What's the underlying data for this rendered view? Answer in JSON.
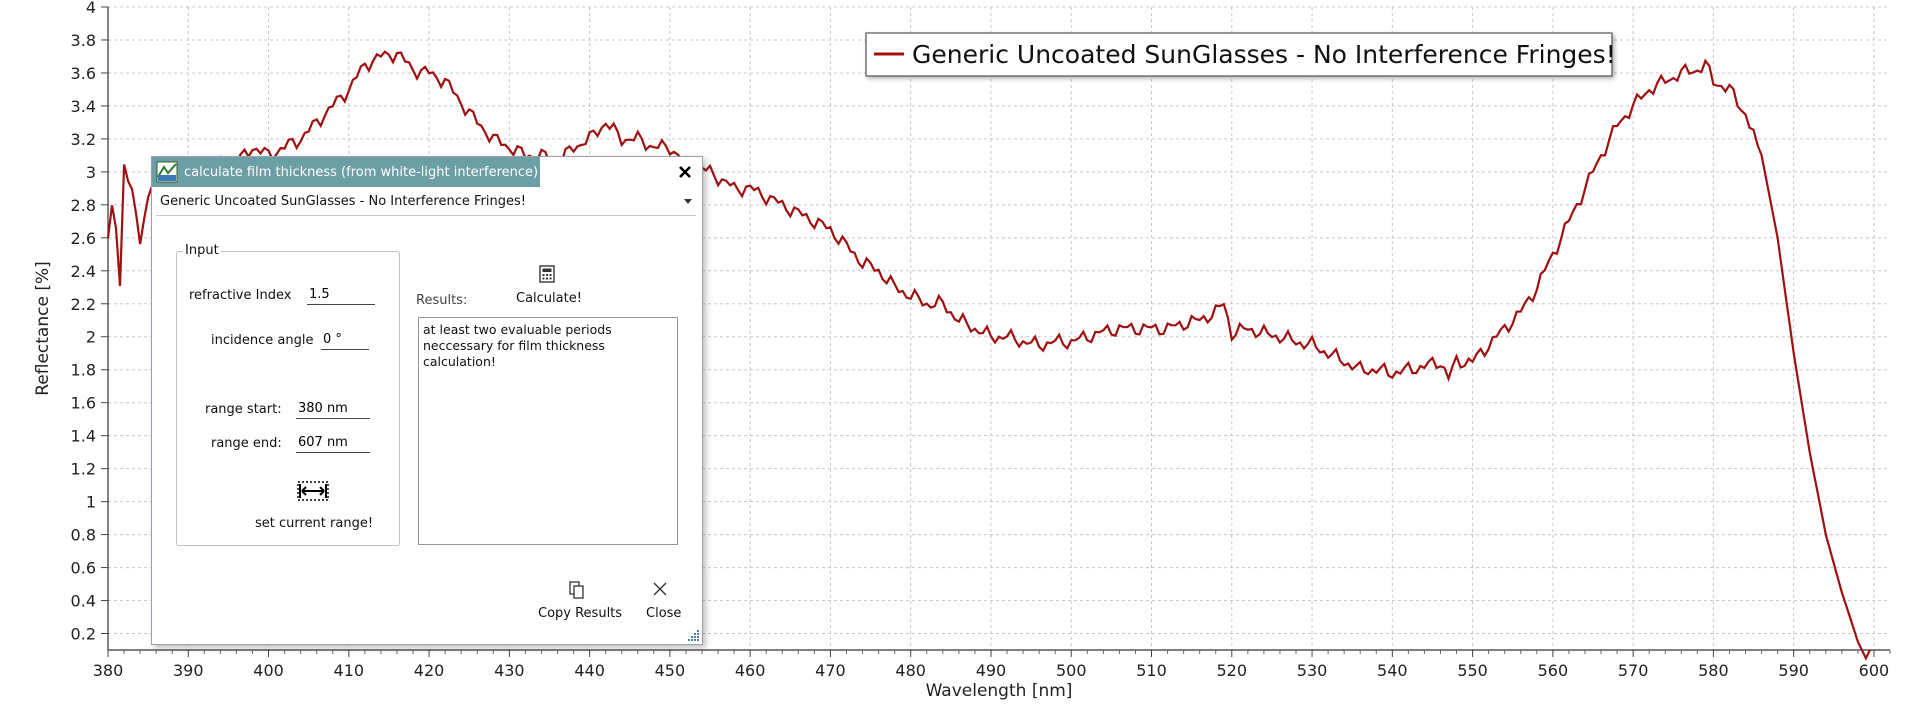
{
  "chart_data": {
    "type": "line",
    "xlabel": "Wavelength [nm]",
    "ylabel": "Reflectance [%]",
    "xlim": [
      380,
      602
    ],
    "ylim": [
      0.1,
      4
    ],
    "x_ticks": [
      380,
      390,
      400,
      410,
      420,
      430,
      440,
      450,
      460,
      470,
      480,
      490,
      500,
      510,
      520,
      530,
      540,
      550,
      560,
      570,
      580,
      590,
      600
    ],
    "y_ticks": [
      0.2,
      0.4,
      0.6,
      0.8,
      1,
      1.2,
      1.4,
      1.6,
      1.8,
      2,
      2.2,
      2.4,
      2.6,
      2.8,
      3,
      3.2,
      3.4,
      3.6,
      3.8,
      4
    ],
    "grid": true,
    "legend": "top-right",
    "series": [
      {
        "name": "Generic Uncoated SunGlasses - No Interference Fringes!",
        "color": "#a01010",
        "x": [
          380,
          380.5,
          381,
          381.5,
          382,
          383,
          384,
          385,
          386,
          387,
          388,
          389,
          390,
          392,
          394,
          396,
          398,
          400,
          402,
          404,
          406,
          408,
          410,
          412,
          414,
          416,
          418,
          420,
          422,
          424,
          426,
          428,
          430,
          432,
          434,
          436,
          438,
          440,
          442,
          444,
          446,
          448,
          450,
          452,
          455,
          458,
          460,
          462,
          464,
          466,
          468,
          470,
          472,
          474,
          476,
          478,
          480,
          482,
          484,
          486,
          488,
          490,
          492,
          494,
          496,
          498,
          500,
          502,
          504,
          506,
          508,
          510,
          512,
          514,
          516,
          518,
          519,
          520,
          522,
          524,
          526,
          528,
          530,
          532,
          534,
          536,
          538,
          540,
          542,
          544,
          546,
          547,
          548,
          550,
          552,
          554,
          556,
          558,
          560,
          562,
          564,
          566,
          568,
          570,
          572,
          574,
          576,
          578,
          579,
          580,
          582,
          584,
          586,
          588,
          590,
          592,
          594,
          596,
          598,
          599.5
        ],
        "y": [
          2.6,
          2.8,
          2.7,
          2.3,
          3.0,
          2.9,
          2.6,
          2.8,
          3.05,
          2.85,
          2.9,
          2.95,
          2.95,
          3.0,
          3.05,
          3.05,
          3.15,
          3.1,
          3.15,
          3.2,
          3.3,
          3.4,
          3.5,
          3.65,
          3.7,
          3.72,
          3.62,
          3.6,
          3.55,
          3.42,
          3.3,
          3.2,
          3.15,
          3.1,
          3.1,
          3.05,
          3.15,
          3.2,
          3.3,
          3.2,
          3.2,
          3.15,
          3.15,
          3.05,
          3.0,
          2.9,
          2.9,
          2.85,
          2.8,
          2.75,
          2.7,
          2.65,
          2.55,
          2.45,
          2.4,
          2.3,
          2.25,
          2.2,
          2.2,
          2.1,
          2.05,
          2.0,
          2.0,
          1.97,
          1.95,
          1.97,
          1.97,
          2.0,
          2.03,
          2.05,
          2.05,
          2.05,
          2.05,
          2.08,
          2.1,
          2.15,
          2.2,
          2.02,
          2.05,
          2.02,
          2.0,
          1.97,
          1.95,
          1.9,
          1.85,
          1.8,
          1.8,
          1.78,
          1.8,
          1.82,
          1.85,
          1.75,
          1.85,
          1.85,
          1.95,
          2.05,
          2.15,
          2.3,
          2.5,
          2.7,
          2.9,
          3.1,
          3.28,
          3.4,
          3.5,
          3.55,
          3.6,
          3.62,
          3.65,
          3.55,
          3.5,
          3.35,
          3.1,
          2.6,
          1.9,
          1.3,
          0.8,
          0.45,
          0.15,
          0.0
        ]
      }
    ]
  },
  "dialog": {
    "title": "calculate film thickness (from white-light interference)",
    "spectrum_select": "Generic Uncoated SunGlasses - No Interference Fringes!",
    "input_group_label": "Input",
    "refractive_index_label": "refractive Index",
    "refractive_index_value": "1.5",
    "incidence_angle_label": "incidence angle",
    "incidence_angle_value": "0 °",
    "range_start_label": "range start:",
    "range_start_value": "380 nm",
    "range_end_label": "range end:",
    "range_end_value": "607 nm",
    "set_range_label": "set current range!",
    "results_label": "Results:",
    "calculate_label": "Calculate!",
    "results_text": "at least two evaluable periods neccessary for film thickness calculation!",
    "copy_results_label": "Copy Results",
    "close_label": "Close",
    "icons": {
      "app": "spectrometer-icon",
      "close": "close-icon",
      "calculate": "calculator-icon",
      "copy": "copy-icon",
      "set_range": "range-icon"
    }
  }
}
